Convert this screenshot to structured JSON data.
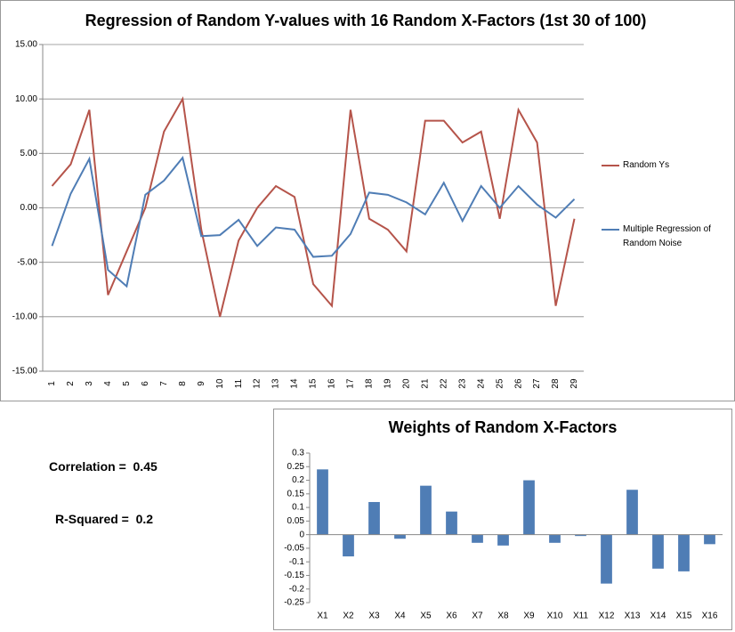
{
  "chart_data": [
    {
      "type": "line",
      "title": "Regression of Random Y-values with 16 Random X-Factors (1st 30 of 100)",
      "categories": [
        "1",
        "2",
        "3",
        "4",
        "5",
        "6",
        "7",
        "8",
        "9",
        "10",
        "11",
        "12",
        "13",
        "14",
        "15",
        "16",
        "17",
        "18",
        "19",
        "20",
        "21",
        "22",
        "23",
        "24",
        "25",
        "26",
        "27",
        "28",
        "29"
      ],
      "series": [
        {
          "name": "Random Ys",
          "color": "#b5544a",
          "values": [
            2,
            4,
            9,
            -8,
            -4,
            0,
            7,
            10,
            -2,
            -10,
            -3,
            0,
            2,
            1,
            -7,
            -9,
            9,
            -1,
            -2,
            -4,
            8,
            8,
            6,
            7,
            -1,
            9,
            6,
            -9,
            -1
          ]
        },
        {
          "name": "Multiple Regression of Random Noise",
          "color": "#4f7db5",
          "values": [
            -3.5,
            1.3,
            4.5,
            -5.7,
            -7.2,
            1.2,
            2.5,
            4.6,
            -2.6,
            -2.5,
            -1.1,
            -3.5,
            -1.8,
            -2.0,
            -4.5,
            -4.4,
            -2.4,
            1.4,
            1.2,
            0.5,
            -0.6,
            2.3,
            -1.2,
            2.0,
            0.0,
            2.0,
            0.3,
            -0.9,
            0.8
          ]
        }
      ],
      "ylim": [
        -15,
        15
      ],
      "yticks": [
        {
          "value": -15,
          "label": "-15.00"
        },
        {
          "value": -10,
          "label": "-10.00"
        },
        {
          "value": -5,
          "label": "-5.00"
        },
        {
          "value": 0,
          "label": "0.00"
        },
        {
          "value": 5,
          "label": "5.00"
        },
        {
          "value": 10,
          "label": "10.00"
        },
        {
          "value": 15,
          "label": "15.00"
        }
      ],
      "grid": true,
      "legend": "right"
    },
    {
      "type": "bar",
      "title": "Weights of Random X-Factors",
      "categories": [
        "X1",
        "X2",
        "X3",
        "X4",
        "X5",
        "X6",
        "X7",
        "X8",
        "X9",
        "X10",
        "X11",
        "X12",
        "X13",
        "X14",
        "X15",
        "X16"
      ],
      "values": [
        0.24,
        -0.08,
        0.12,
        -0.015,
        0.18,
        0.085,
        -0.03,
        -0.04,
        0.2,
        -0.03,
        -0.005,
        -0.18,
        0.165,
        -0.125,
        -0.135,
        -0.035
      ],
      "color": "#4f7db5",
      "ylim": [
        -0.25,
        0.3
      ],
      "yticks": [
        -0.25,
        -0.2,
        -0.15,
        -0.1,
        -0.05,
        0,
        0.05,
        0.1,
        0.15,
        0.2,
        0.25,
        0.3
      ],
      "grid": false
    }
  ],
  "stats": [
    "Correlation =  0.45",
    "R-Squared =  0.2"
  ]
}
